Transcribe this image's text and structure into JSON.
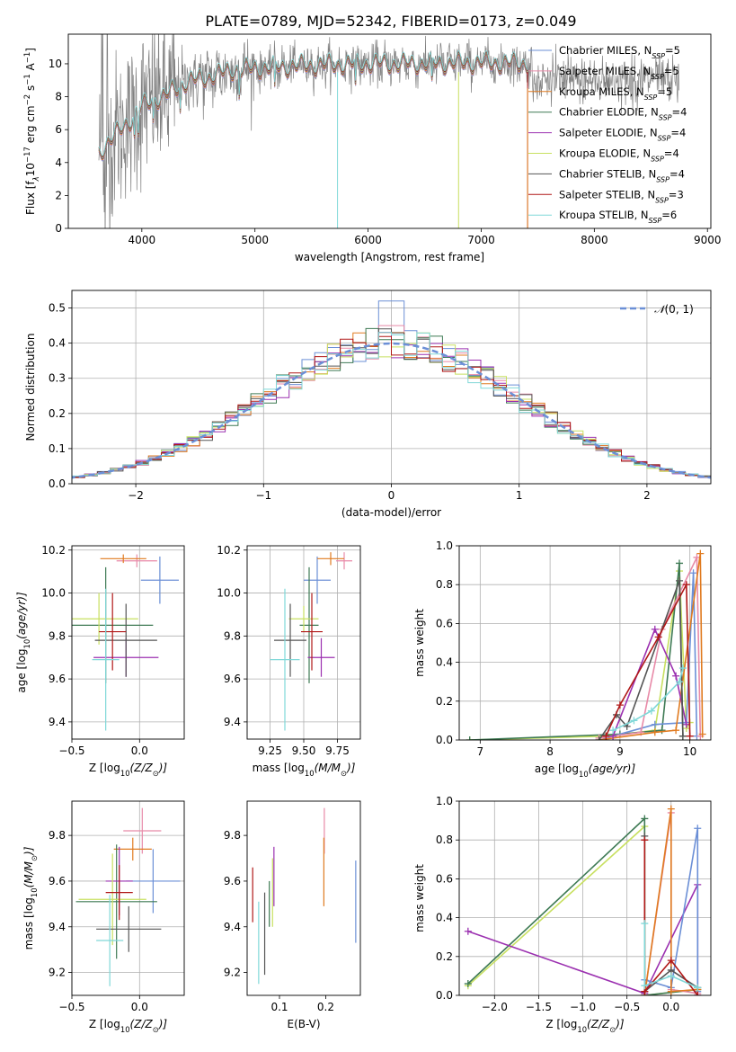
{
  "figure_title": "PLATE=0789, MJD=52342, FIBERID=0173, z=0.049",
  "colors": {
    "Chabrier MILES": "#6b8fd6",
    "Salpeter MILES": "#e88aa8",
    "Kroupa MILES": "#e07b20",
    "Chabrier ELODIE": "#3e7a54",
    "Salpeter ELODIE": "#9b30b0",
    "Kroupa ELODIE": "#c8e060",
    "Chabrier STELIB": "#555555",
    "Salpeter STELIB": "#b01818",
    "Kroupa STELIB": "#80d8d8",
    "data": "#808080"
  },
  "legend_entries": [
    {
      "model": "Chabrier MILES",
      "n": "5"
    },
    {
      "model": "Salpeter MILES",
      "n": "5"
    },
    {
      "model": "Kroupa MILES",
      "n": "5"
    },
    {
      "model": "Chabrier ELODIE",
      "n": "4"
    },
    {
      "model": "Salpeter ELODIE",
      "n": "4"
    },
    {
      "model": "Kroupa ELODIE",
      "n": "4"
    },
    {
      "model": "Chabrier STELIB",
      "n": "4"
    },
    {
      "model": "Salpeter STELIB",
      "n": "3"
    },
    {
      "model": "Kroupa STELIB",
      "n": "6"
    }
  ],
  "chart_data": [
    {
      "id": "spectrum",
      "type": "line",
      "xlabel": "wavelength [Angstrom, rest frame]",
      "ylabel_parts": [
        "Flux [f",
        "λ",
        "10",
        "−17",
        " erg cm",
        "−2",
        " s",
        "−1",
        " A",
        "−1",
        "]"
      ],
      "xlim": [
        3350,
        9030
      ],
      "ylim": [
        0,
        11.8
      ],
      "xticks": [
        4000,
        5000,
        6000,
        7000,
        8000,
        9000
      ],
      "yticks": [
        0,
        2,
        4,
        6,
        8,
        10
      ],
      "grid": false,
      "legend_placement": "upper right",
      "approx_continuum": {
        "x": [
          3620,
          3700,
          3800,
          3900,
          4000,
          4100,
          4200,
          4300,
          4400,
          4600,
          4800,
          5000,
          5200,
          5500,
          6000,
          6500,
          7000,
          7400
        ],
        "y": [
          4.6,
          5.2,
          5.9,
          6.6,
          7.4,
          7.8,
          8.0,
          8.5,
          8.9,
          9.2,
          9.6,
          9.7,
          9.8,
          9.9,
          10.0,
          10.0,
          10.05,
          10.0
        ]
      },
      "data_coverage": [
        3620,
        8750
      ],
      "model_coverage": [
        3620,
        7410
      ]
    },
    {
      "id": "residuals",
      "type": "histogram",
      "xlabel": "(data-model)/error",
      "ylabel": "Normed distribution",
      "xlim": [
        -2.5,
        2.5
      ],
      "ylim": [
        0,
        0.55
      ],
      "xticks": [
        -2,
        -1,
        0,
        1,
        2
      ],
      "yticks": [
        0.0,
        0.1,
        0.2,
        0.3,
        0.4,
        0.5
      ],
      "grid": true,
      "bin_width": 0.1,
      "reference_curve": {
        "name": "N(0,1)",
        "label_main": "𝒩",
        "label_args": "(0, 1)",
        "mu": 0,
        "sigma": 1,
        "style": "dashed"
      },
      "peak_values": [
        0.52,
        0.45,
        0.43,
        0.41
      ],
      "legend_placement": "upper right"
    },
    {
      "id": "age_vs_Z",
      "type": "errorbar",
      "xlabel_parts": [
        "Z [log",
        "10",
        "(Z/Z",
        "⊙",
        ")]"
      ],
      "ylabel_parts": [
        "age  [log",
        "10",
        "(age/yr)]"
      ],
      "xlim": [
        -0.5,
        0.33
      ],
      "ylim": [
        9.32,
        10.22
      ],
      "xticks": [
        -0.5,
        0.0
      ],
      "yticks": [
        9.4,
        9.6,
        9.8,
        10.0,
        10.2
      ],
      "grid": true,
      "points": [
        {
          "model": "Chabrier MILES",
          "x": 0.15,
          "y": 10.06,
          "xerr": 0.14,
          "yerr": 0.11
        },
        {
          "model": "Salpeter MILES",
          "x": -0.02,
          "y": 10.15,
          "xerr": 0.15,
          "yerr": 0.03
        },
        {
          "model": "Kroupa MILES",
          "x": -0.12,
          "y": 10.16,
          "xerr": 0.17,
          "yerr": 0.02
        },
        {
          "model": "Chabrier ELODIE",
          "x": -0.25,
          "y": 9.85,
          "xerr": 0.35,
          "yerr": 0.27
        },
        {
          "model": "Salpeter ELODIE",
          "x": -0.1,
          "y": 9.7,
          "xerr": 0.24,
          "yerr": 0.09
        },
        {
          "model": "Kroupa ELODIE",
          "x": -0.3,
          "y": 9.88,
          "xerr": 0.29,
          "yerr": 0.12
        },
        {
          "model": "Chabrier STELIB",
          "x": -0.1,
          "y": 9.78,
          "xerr": 0.23,
          "yerr": 0.17
        },
        {
          "model": "Salpeter STELIB",
          "x": -0.2,
          "y": 9.82,
          "xerr": 0.1,
          "yerr": 0.18
        },
        {
          "model": "Kroupa STELIB",
          "x": -0.25,
          "y": 9.69,
          "xerr": 0.1,
          "yerr": 0.33
        }
      ]
    },
    {
      "id": "age_vs_mass",
      "type": "errorbar",
      "xlabel_parts": [
        "mass [log",
        "10",
        "(M/M",
        "⊙",
        ")]"
      ],
      "ylabel": "",
      "xlim": [
        9.08,
        9.92
      ],
      "ylim": [
        9.32,
        10.22
      ],
      "xticks": [
        9.25,
        9.5,
        9.75
      ],
      "yticks": [
        9.4,
        9.6,
        9.8,
        10.0,
        10.2
      ],
      "grid": true,
      "points": [
        {
          "model": "Chabrier MILES",
          "x": 9.6,
          "y": 10.06,
          "xerr": 0.1,
          "yerr": 0.11
        },
        {
          "model": "Salpeter MILES",
          "x": 9.8,
          "y": 10.15,
          "xerr": 0.06,
          "yerr": 0.04
        },
        {
          "model": "Kroupa MILES",
          "x": 9.7,
          "y": 10.16,
          "xerr": 0.1,
          "yerr": 0.03
        },
        {
          "model": "Chabrier ELODIE",
          "x": 9.54,
          "y": 9.85,
          "xerr": 0.07,
          "yerr": 0.27
        },
        {
          "model": "Salpeter ELODIE",
          "x": 9.63,
          "y": 9.7,
          "xerr": 0.1,
          "yerr": 0.09
        },
        {
          "model": "Kroupa ELODIE",
          "x": 9.5,
          "y": 9.88,
          "xerr": 0.11,
          "yerr": 0.06
        },
        {
          "model": "Chabrier STELIB",
          "x": 9.4,
          "y": 9.78,
          "xerr": 0.12,
          "yerr": 0.17
        },
        {
          "model": "Salpeter STELIB",
          "x": 9.56,
          "y": 9.82,
          "xerr": 0.08,
          "yerr": 0.18
        },
        {
          "model": "Kroupa STELIB",
          "x": 9.36,
          "y": 9.69,
          "xerr": 0.11,
          "yerr": 0.33
        }
      ]
    },
    {
      "id": "massweight_vs_age",
      "type": "line",
      "xlabel_parts": [
        "age  [log",
        "10",
        "(age/yr)]"
      ],
      "ylabel": "mass weight",
      "xlim": [
        6.7,
        10.3
      ],
      "ylim": [
        0,
        1.0
      ],
      "xticks": [
        7,
        8,
        9,
        10
      ],
      "yticks": [
        0.0,
        0.2,
        0.4,
        0.6,
        0.8,
        1.0
      ],
      "grid": true,
      "series": [
        {
          "model": "Kroupa ELODIE",
          "x": [
            6.85,
            8.8,
            9.5,
            9.85,
            9.95,
            10.0
          ],
          "y": [
            0.0,
            0.02,
            0.05,
            0.87,
            0.06,
            0.09
          ]
        },
        {
          "model": "Chabrier ELODIE",
          "x": [
            6.85,
            9.0,
            9.6,
            9.85,
            9.9
          ],
          "y": [
            0.0,
            0.03,
            0.05,
            0.91,
            0.02
          ]
        },
        {
          "model": "Chabrier MILES",
          "x": [
            8.8,
            9.5,
            9.95,
            10.05,
            10.1
          ],
          "y": [
            0.01,
            0.08,
            0.09,
            0.86,
            0.02
          ]
        },
        {
          "model": "Salpeter MILES",
          "x": [
            8.7,
            9.3,
            9.6,
            10.1,
            10.15
          ],
          "y": [
            0.01,
            0.04,
            0.57,
            0.94,
            0.02
          ]
        },
        {
          "model": "Kroupa MILES",
          "x": [
            8.7,
            9.5,
            9.8,
            10.15,
            10.18
          ],
          "y": [
            0.0,
            0.04,
            0.05,
            0.96,
            0.03
          ]
        },
        {
          "model": "Salpeter ELODIE",
          "x": [
            8.9,
            9.5,
            9.8,
            9.95
          ],
          "y": [
            0.02,
            0.57,
            0.33,
            0.08
          ]
        },
        {
          "model": "Chabrier STELIB",
          "x": [
            8.7,
            8.95,
            9.1,
            9.85,
            9.9
          ],
          "y": [
            0.0,
            0.13,
            0.07,
            0.82,
            0.02
          ]
        },
        {
          "model": "Salpeter STELIB",
          "x": [
            8.8,
            9.0,
            9.55,
            9.95,
            10.0
          ],
          "y": [
            0.02,
            0.18,
            0.53,
            0.8,
            0.02
          ]
        },
        {
          "model": "Kroupa STELIB",
          "x": [
            8.9,
            9.2,
            9.45,
            9.85,
            9.9
          ],
          "y": [
            0.05,
            0.1,
            0.15,
            0.3,
            0.37
          ]
        }
      ]
    },
    {
      "id": "mass_vs_Z",
      "type": "errorbar",
      "xlabel_parts": [
        "Z [log",
        "10",
        "(Z/Z",
        "⊙",
        ")]"
      ],
      "ylabel_parts": [
        "mass [log",
        "10",
        "(M/M",
        "⊙",
        ")]"
      ],
      "xlim": [
        -0.5,
        0.33
      ],
      "ylim": [
        9.1,
        9.95
      ],
      "xticks": [
        -0.5,
        0.0
      ],
      "yticks": [
        9.2,
        9.4,
        9.6,
        9.8
      ],
      "grid": true,
      "points": [
        {
          "model": "Chabrier MILES",
          "x": 0.1,
          "y": 9.6,
          "xerr": 0.2,
          "yerr": 0.14
        },
        {
          "model": "Salpeter MILES",
          "x": 0.02,
          "y": 9.82,
          "xerr": 0.14,
          "yerr": 0.1
        },
        {
          "model": "Kroupa MILES",
          "x": -0.05,
          "y": 9.74,
          "xerr": 0.14,
          "yerr": 0.05
        },
        {
          "model": "Chabrier ELODIE",
          "x": -0.17,
          "y": 9.51,
          "xerr": 0.3,
          "yerr": 0.25
        },
        {
          "model": "Salpeter ELODIE",
          "x": -0.15,
          "y": 9.6,
          "xerr": 0.1,
          "yerr": 0.15
        },
        {
          "model": "Kroupa ELODIE",
          "x": -0.2,
          "y": 9.52,
          "xerr": 0.25,
          "yerr": 0.2
        },
        {
          "model": "Chabrier STELIB",
          "x": -0.08,
          "y": 9.39,
          "xerr": 0.24,
          "yerr": 0.1
        },
        {
          "model": "Salpeter STELIB",
          "x": -0.15,
          "y": 9.55,
          "xerr": 0.1,
          "yerr": 0.12
        },
        {
          "model": "Kroupa STELIB",
          "x": -0.22,
          "y": 9.34,
          "xerr": 0.1,
          "yerr": 0.2
        }
      ]
    },
    {
      "id": "mass_vs_EBV",
      "type": "errorbar",
      "xlabel": "E(B-V)",
      "ylabel": "",
      "xlim": [
        0.03,
        0.275
      ],
      "ylim": [
        9.1,
        9.95
      ],
      "xticks": [
        0.1,
        0.2
      ],
      "yticks": [
        9.2,
        9.4,
        9.6,
        9.8
      ],
      "grid": false,
      "points": [
        {
          "model": "Chabrier MILES",
          "x": 0.265,
          "y": 9.51,
          "xerr": 0.0,
          "yerr": 0.18
        },
        {
          "model": "Salpeter MILES",
          "x": 0.197,
          "y": 9.82,
          "xerr": 0.0,
          "yerr": 0.1
        },
        {
          "model": "Kroupa MILES",
          "x": 0.196,
          "y": 9.64,
          "xerr": 0.0,
          "yerr": 0.15
        },
        {
          "model": "Chabrier ELODIE",
          "x": 0.078,
          "y": 9.5,
          "xerr": 0.0,
          "yerr": 0.1
        },
        {
          "model": "Salpeter ELODIE",
          "x": 0.088,
          "y": 9.62,
          "xerr": 0.0,
          "yerr": 0.13
        },
        {
          "model": "Kroupa ELODIE",
          "x": 0.085,
          "y": 9.55,
          "xerr": 0.0,
          "yerr": 0.15
        },
        {
          "model": "Chabrier STELIB",
          "x": 0.068,
          "y": 9.37,
          "xerr": 0.0,
          "yerr": 0.18
        },
        {
          "model": "Salpeter STELIB",
          "x": 0.042,
          "y": 9.54,
          "xerr": 0.0,
          "yerr": 0.12
        },
        {
          "model": "Kroupa STELIB",
          "x": 0.055,
          "y": 9.33,
          "xerr": 0.0,
          "yerr": 0.18
        }
      ]
    },
    {
      "id": "massweight_vs_Z",
      "type": "line",
      "xlabel_parts": [
        "Z [log",
        "10",
        "(Z/Z",
        "⊙",
        ")]"
      ],
      "ylabel": "mass weight",
      "xlim": [
        -2.4,
        0.45
      ],
      "ylim": [
        0,
        1.0
      ],
      "xticks": [
        -2.0,
        -1.5,
        -1.0,
        -0.5,
        0.0
      ],
      "yticks": [
        0.0,
        0.2,
        0.4,
        0.6,
        0.8,
        1.0
      ],
      "grid": true,
      "series": [
        {
          "model": "Kroupa ELODIE",
          "x": [
            -2.3,
            -0.3,
            -0.3,
            0.3
          ],
          "y": [
            0.05,
            0.87,
            0.0,
            0.03
          ]
        },
        {
          "model": "Chabrier ELODIE",
          "x": [
            -2.3,
            -0.3,
            -0.3,
            0.3
          ],
          "y": [
            0.06,
            0.91,
            0.0,
            0.03
          ]
        },
        {
          "model": "Salpeter ELODIE",
          "x": [
            -2.3,
            -0.3,
            0.3,
            0.3
          ],
          "y": [
            0.33,
            0.01,
            0.57,
            0.0
          ]
        },
        {
          "model": "Chabrier MILES",
          "x": [
            -0.3,
            0.0,
            0.3,
            0.3
          ],
          "y": [
            0.08,
            0.04,
            0.86,
            0.02
          ]
        },
        {
          "model": "Salpeter MILES",
          "x": [
            -0.3,
            0.0,
            0.0,
            0.3
          ],
          "y": [
            0.0,
            0.94,
            0.03,
            0.01
          ]
        },
        {
          "model": "Kroupa MILES",
          "x": [
            -0.3,
            0.0,
            0.0,
            0.3
          ],
          "y": [
            0.0,
            0.96,
            0.02,
            0.03
          ]
        },
        {
          "model": "Chabrier STELIB",
          "x": [
            -0.3,
            -0.3,
            0.0,
            0.3
          ],
          "y": [
            0.82,
            0.02,
            0.13,
            0.04
          ]
        },
        {
          "model": "Salpeter STELIB",
          "x": [
            -0.3,
            -0.3,
            0.0,
            0.3
          ],
          "y": [
            0.8,
            0.02,
            0.18,
            0.0
          ]
        },
        {
          "model": "Kroupa STELIB",
          "x": [
            -0.3,
            -0.3,
            0.0,
            0.3
          ],
          "y": [
            0.37,
            0.05,
            0.1,
            0.04
          ]
        }
      ]
    }
  ]
}
